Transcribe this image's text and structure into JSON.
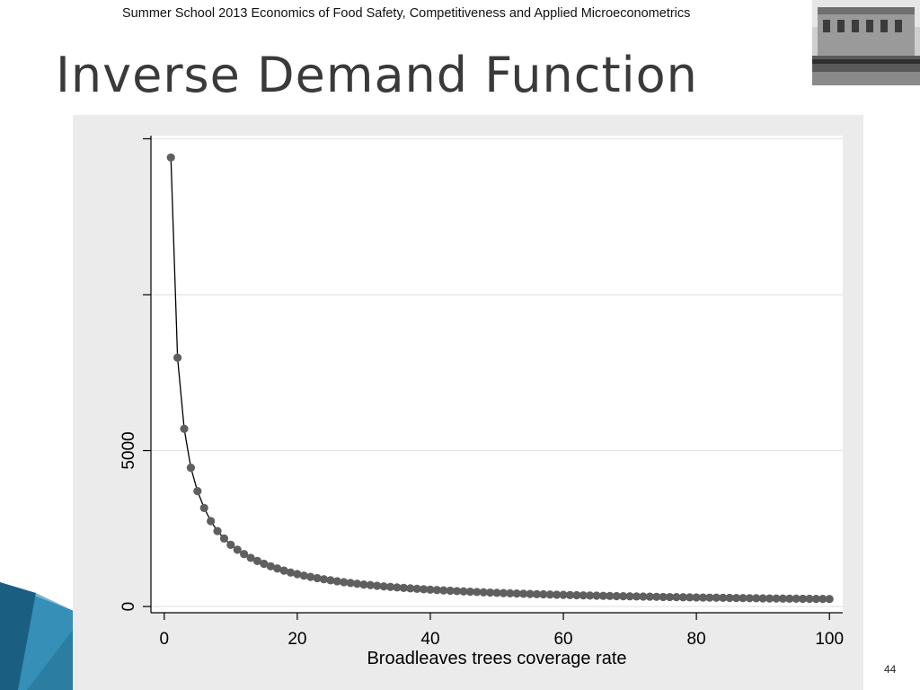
{
  "header": {
    "course": "Summer School 2013 Economics of Food Safety, Competitiveness and Applied Microeconometrics"
  },
  "slide": {
    "title": "Inverse Demand Function",
    "page_number": "44"
  },
  "colors": {
    "plot_outer_bg": "#ebebeb",
    "plot_inner_bg": "#ffffff",
    "marker": "#5f5f5f",
    "line": "#000000",
    "accent_teal": "#1f7fa6"
  },
  "chart_data": {
    "type": "line",
    "title": "",
    "xlabel": "Broadleaves trees coverage rate",
    "ylabel": "",
    "xlim": [
      -2,
      102
    ],
    "ylim": [
      -200,
      15100
    ],
    "x_ticks": [
      0,
      20,
      40,
      60,
      80,
      100
    ],
    "x_tick_labels": [
      "0",
      "20",
      "40",
      "60",
      "80",
      "100"
    ],
    "y_ticks": [
      0,
      5000,
      10000,
      15000
    ],
    "y_tick_labels": [
      "0",
      "5000",
      "",
      ""
    ],
    "grid": true,
    "legend": "none",
    "series": [
      {
        "markers": true,
        "x": [
          1,
          2,
          3,
          4,
          5,
          6,
          7,
          8,
          9,
          10,
          11,
          12,
          13,
          14,
          15,
          16,
          17,
          18,
          19,
          20,
          21,
          22,
          23,
          24,
          25,
          26,
          27,
          28,
          29,
          30,
          31,
          32,
          33,
          34,
          35,
          36,
          37,
          38,
          39,
          40,
          41,
          42,
          43,
          44,
          45,
          46,
          47,
          48,
          49,
          50,
          51,
          52,
          53,
          54,
          55,
          56,
          57,
          58,
          59,
          60,
          61,
          62,
          63,
          64,
          65,
          66,
          67,
          68,
          69,
          70,
          71,
          72,
          73,
          74,
          75,
          76,
          77,
          78,
          79,
          80,
          81,
          82,
          83,
          84,
          85,
          86,
          87,
          88,
          89,
          90,
          91,
          92,
          93,
          94,
          95,
          96,
          97,
          98,
          99,
          100
        ],
        "y": [
          14400,
          7980,
          5700,
          4450,
          3700,
          3160,
          2740,
          2420,
          2180,
          1980,
          1820,
          1680,
          1560,
          1460,
          1370,
          1290,
          1220,
          1150,
          1090,
          1040,
          990,
          950,
          910,
          875,
          840,
          810,
          780,
          755,
          730,
          705,
          685,
          665,
          645,
          628,
          612,
          596,
          581,
          567,
          553,
          540,
          528,
          516,
          505,
          494,
          484,
          474,
          465,
          456,
          447,
          439,
          431,
          423,
          416,
          409,
          402,
          396,
          390,
          384,
          378,
          372,
          367,
          362,
          357,
          352,
          347,
          342,
          338,
          334,
          330,
          326,
          322,
          318,
          314,
          310,
          306,
          303,
          300,
          297,
          294,
          291,
          288,
          285,
          282,
          279,
          276,
          273,
          270,
          267,
          264,
          261,
          258,
          256,
          254,
          252,
          250,
          248,
          246,
          244,
          242,
          240
        ]
      }
    ]
  }
}
